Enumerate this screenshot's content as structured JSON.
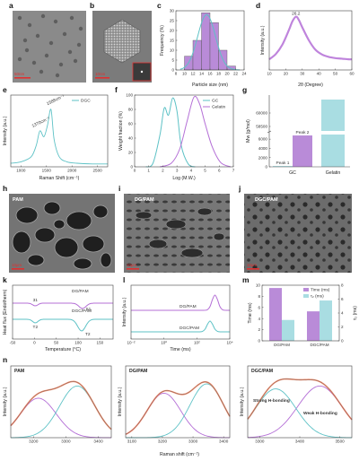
{
  "panels": {
    "a": {
      "label": "a",
      "scalebar": "50nm"
    },
    "b": {
      "label": "b",
      "scalebar": "10nm"
    },
    "c": {
      "label": "c"
    },
    "d": {
      "label": "d"
    },
    "e": {
      "label": "e"
    },
    "f": {
      "label": "f"
    },
    "g": {
      "label": "g"
    },
    "h": {
      "label": "h",
      "title": "PAM",
      "scalebar": "10μm"
    },
    "i": {
      "label": "i",
      "title": "DG/PAM",
      "scalebar": "10μm"
    },
    "j": {
      "label": "j",
      "title": "DGC/PAM",
      "scalebar": "10μm"
    },
    "k": {
      "label": "k"
    },
    "l": {
      "label": "l"
    },
    "m": {
      "label": "m"
    },
    "n": {
      "label": "n"
    }
  },
  "colors": {
    "teal": "#5ec2c6",
    "purple": "#b46fd6",
    "bar_purple": "#b98bd8",
    "bar_teal": "#a9dde2",
    "fit_orange": "#f07a55"
  },
  "chart_data": [
    {
      "id": "c",
      "type": "bar",
      "xlabel": "Particle size (nm)",
      "ylabel": "Frequency (%)",
      "x_ticks": [
        8,
        10,
        12,
        14,
        16,
        18,
        20,
        22,
        24
      ],
      "y_ticks": [
        0,
        5,
        10,
        15,
        20,
        25,
        30
      ],
      "xlim": [
        8,
        24
      ],
      "ylim": [
        0,
        30
      ],
      "bins": [
        [
          10,
          12,
          7
        ],
        [
          12,
          14,
          15
        ],
        [
          14,
          16,
          29
        ],
        [
          16,
          18,
          24
        ],
        [
          18,
          20,
          10
        ],
        [
          20,
          22,
          2
        ]
      ],
      "fit": "gaussian"
    },
    {
      "id": "d",
      "type": "line",
      "xlabel": "2θ (Degree)",
      "ylabel": "Intensity (a.u.)",
      "x_ticks": [
        10,
        20,
        30,
        40,
        50,
        60
      ],
      "xlim": [
        10,
        60
      ],
      "annotation": "26.2",
      "x": [
        10,
        14,
        18,
        22,
        24,
        26.2,
        28,
        30,
        34,
        38,
        42,
        46,
        50,
        54,
        58,
        60
      ],
      "y": [
        0.18,
        0.27,
        0.43,
        0.68,
        0.82,
        0.9,
        0.84,
        0.72,
        0.5,
        0.34,
        0.26,
        0.22,
        0.2,
        0.19,
        0.18,
        0.18
      ]
    },
    {
      "id": "e",
      "type": "line",
      "xlabel": "Raman Shift (cm⁻¹)",
      "ylabel": "Intensity (a.u.)",
      "x_ticks": [
        1000,
        1500,
        2000,
        2500
      ],
      "xlim": [
        800,
        2700
      ],
      "legend": [
        "DGC"
      ],
      "annotations": [
        "1370cm⁻¹",
        "1588cm⁻¹"
      ],
      "x": [
        800,
        1000,
        1200,
        1300,
        1370,
        1450,
        1520,
        1588,
        1650,
        1750,
        1900,
        2100,
        2400,
        2700
      ],
      "y": [
        0.05,
        0.07,
        0.14,
        0.3,
        0.5,
        0.42,
        0.58,
        0.8,
        0.38,
        0.14,
        0.07,
        0.05,
        0.04,
        0.04
      ]
    },
    {
      "id": "f",
      "type": "line",
      "xlabel": "Log (M.W.)",
      "ylabel": "Weight fraction (%)",
      "x_ticks": [
        0,
        1,
        2,
        3,
        4,
        5,
        6,
        7
      ],
      "y_ticks": [
        0,
        20,
        40,
        60,
        80,
        100
      ],
      "xlim": [
        0,
        7
      ],
      "ylim": [
        0,
        100
      ],
      "series": [
        {
          "name": "GC",
          "x": [
            0.8,
            1.3,
            1.8,
            2.1,
            2.4,
            2.7,
            3.0,
            3.3,
            3.8,
            4.3
          ],
          "y": [
            0,
            5,
            45,
            82,
            72,
            96,
            78,
            30,
            4,
            0
          ]
        },
        {
          "name": "Gelatin",
          "x": [
            1.8,
            2.6,
            3.2,
            3.7,
            4.2,
            4.6,
            5.0,
            5.5,
            6.1,
            6.8
          ],
          "y": [
            0,
            5,
            25,
            62,
            97,
            88,
            60,
            28,
            6,
            0
          ]
        }
      ]
    },
    {
      "id": "g",
      "type": "bar",
      "xlabel": "",
      "ylabel": "Mw (g/mol)",
      "y_ticks": [
        "0",
        "2000",
        "4000",
        "6000",
        "58500",
        "60000"
      ],
      "groups": [
        "GC",
        "Gelatin"
      ],
      "bars": [
        {
          "label": "Peak 1",
          "value": 180
        },
        {
          "label": "Peak 2",
          "value": 6800
        },
        {
          "label": "",
          "value": 61500
        }
      ]
    },
    {
      "id": "k",
      "type": "line",
      "xlabel": "Temperature (°C)",
      "ylabel": "Heat flux (Endotherm)",
      "x_ticks": [
        -50,
        0,
        50,
        100,
        150
      ],
      "xlim": [
        -50,
        180
      ],
      "series": [
        {
          "name": "DG/PAM",
          "marks": [
            "31",
            "51"
          ]
        },
        {
          "name": "DGC/PAM",
          "marks": [
            "T2",
            "T2"
          ]
        }
      ]
    },
    {
      "id": "l",
      "type": "line",
      "xlabel": "Time (ms)",
      "ylabel": "Intensity (a.u.)",
      "x_ticks": [
        "10⁻²",
        "10⁰",
        "10²",
        "10⁴"
      ],
      "xlim": [
        -2,
        4
      ],
      "series": [
        {
          "name": "DG/PAM"
        },
        {
          "name": "DGC/PAM"
        }
      ]
    },
    {
      "id": "m",
      "type": "bar",
      "ylabel": "Time (ms)",
      "y2label": "τ₂ (ms)",
      "y_ticks": [
        0,
        2,
        4,
        6,
        8,
        10
      ],
      "y2_ticks": [
        0,
        2,
        4,
        6,
        8
      ],
      "categories": [
        "DG/PAM",
        "DGC/PAM"
      ],
      "legend": [
        "Time (ms)",
        "τ₂ (ms)"
      ],
      "series": [
        {
          "name": "Time (ms)",
          "values": [
            9.5,
            5.3
          ]
        },
        {
          "name": "τ₂ (ms)",
          "values": [
            3.0,
            5.8
          ]
        }
      ]
    },
    {
      "id": "n1",
      "type": "line",
      "title": "PAM",
      "x_ticks": [
        3200,
        3300,
        3400
      ],
      "xlim": [
        3130,
        3440
      ]
    },
    {
      "id": "n2",
      "type": "line",
      "title": "DG/PAM",
      "x_ticks": [
        3100,
        3200,
        3300,
        3400
      ],
      "xlim": [
        3080,
        3420
      ]
    },
    {
      "id": "n3",
      "type": "line",
      "title": "DGC/PAM",
      "x_ticks": [
        3300,
        3400,
        3500
      ],
      "xlim": [
        3270,
        3530
      ],
      "annotations": [
        "Strong H-bonding",
        "Weak H-bonding"
      ],
      "xlabel_shared": "Raman shift (cm⁻¹)"
    }
  ]
}
